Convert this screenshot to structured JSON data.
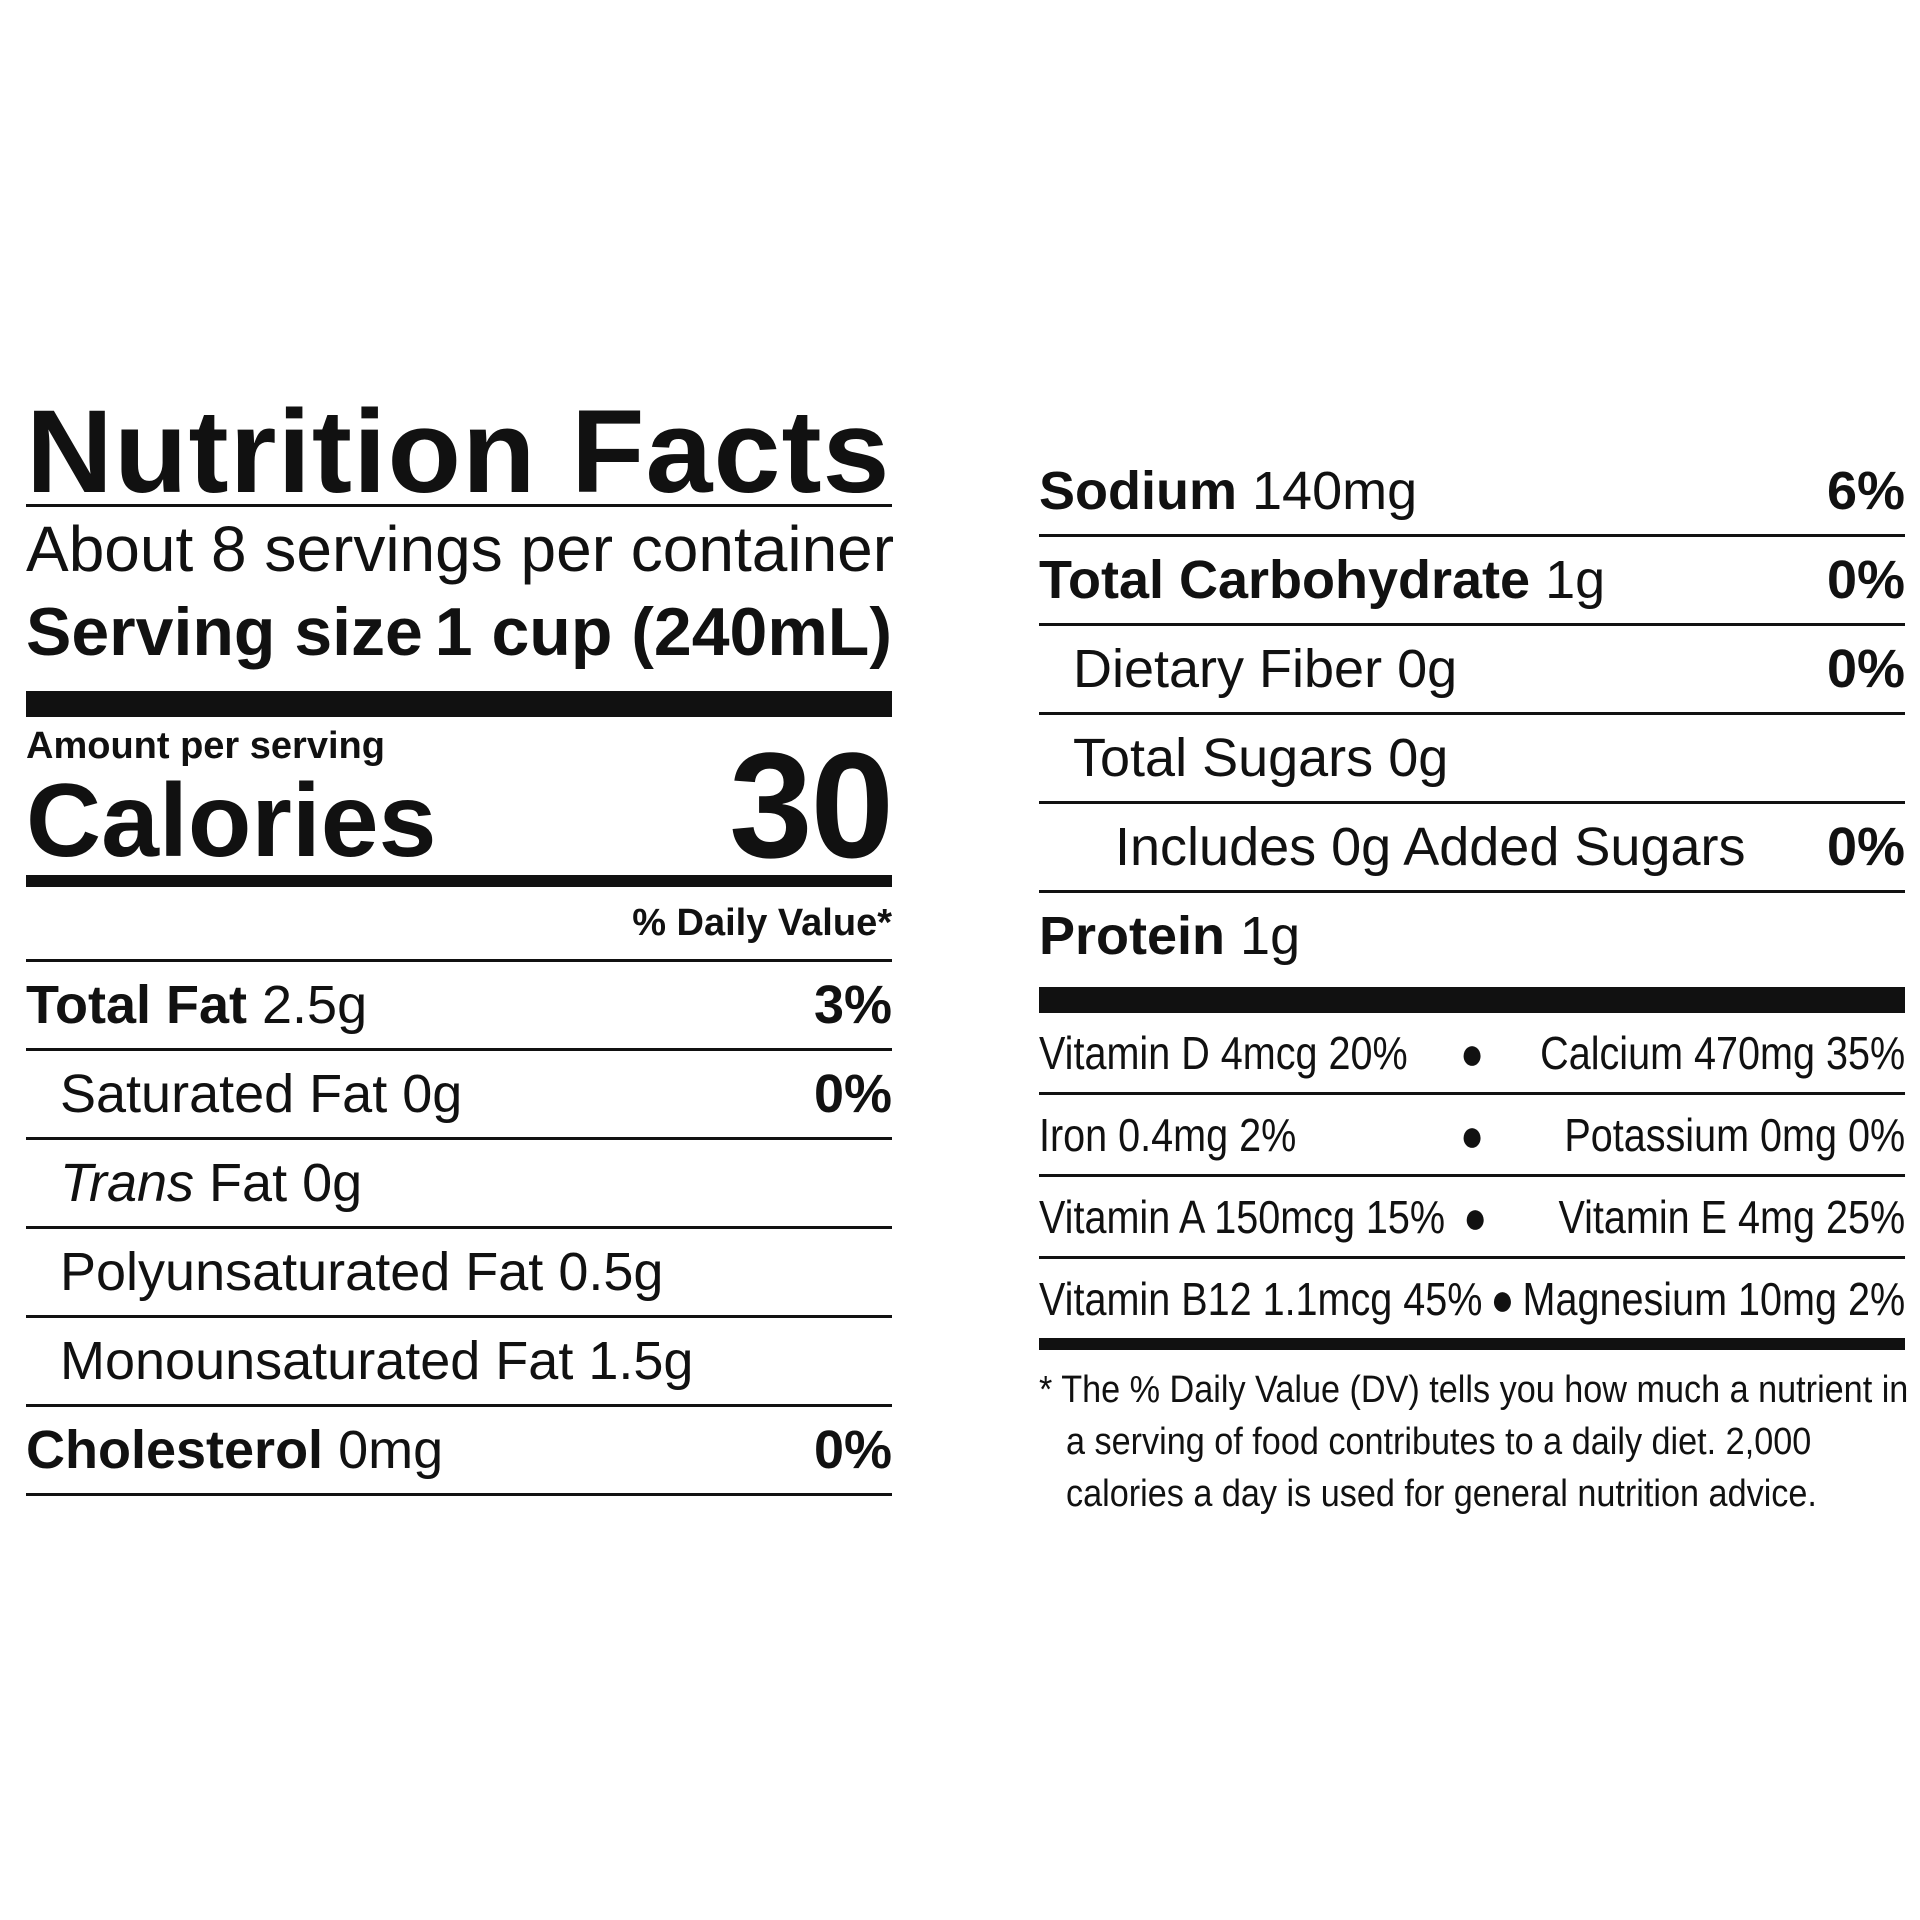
{
  "title": "Nutrition Facts",
  "servings_per_container": "About 8 servings per container",
  "serving_size": {
    "label": "Serving size",
    "value": "1 cup (240mL)"
  },
  "amount_per_serving": "Amount per serving",
  "calories": {
    "label": "Calories",
    "value": "30"
  },
  "daily_value_header": "% Daily Value*",
  "left_rows": [
    {
      "label": "Total Fat",
      "amount": "2.5g",
      "dv": "3%"
    },
    {
      "label": "Saturated Fat",
      "amount": "0g",
      "dv": "0%"
    },
    {
      "label_italic": "Trans",
      "label": "Fat",
      "amount": "0g",
      "dv": ""
    },
    {
      "label": "Polyunsaturated Fat",
      "amount": "0.5g",
      "dv": ""
    },
    {
      "label": "Monounsaturated Fat",
      "amount": "1.5g",
      "dv": ""
    },
    {
      "label": "Cholesterol",
      "amount": "0mg",
      "dv": "0%"
    }
  ],
  "right_rows": [
    {
      "label": "Sodium",
      "amount": "140mg",
      "dv": "6%"
    },
    {
      "label": "Total Carbohydrate",
      "amount": "1g",
      "dv": "0%"
    },
    {
      "label": "Dietary Fiber",
      "amount": "0g",
      "dv": "0%"
    },
    {
      "label": "Total Sugars",
      "amount": "0g",
      "dv": ""
    },
    {
      "label": "Includes 0g Added Sugars",
      "dv": "0%"
    },
    {
      "label": "Protein",
      "amount": "1g",
      "dv": ""
    }
  ],
  "vitamins": [
    {
      "left": "Vitamin D 4mcg 20%",
      "sep": "●",
      "right": "Calcium 470mg 35%"
    },
    {
      "left": "Iron 0.4mg 2%",
      "sep": "●",
      "right": "Potassium 0mg 0%"
    },
    {
      "left": "Vitamin A 150mcg 15%",
      "sep": "●",
      "right": "Vitamin E 4mg 25%"
    },
    {
      "left": "Vitamin B12 1.1mcg 45%",
      "sep": "●",
      "right": "Magnesium 10mg 2%"
    }
  ],
  "footnote": "* The % Daily Value (DV) tells you how much a nutrient in a serving of food contributes to a daily diet. 2,000 calories a day is used for general nutrition advice."
}
